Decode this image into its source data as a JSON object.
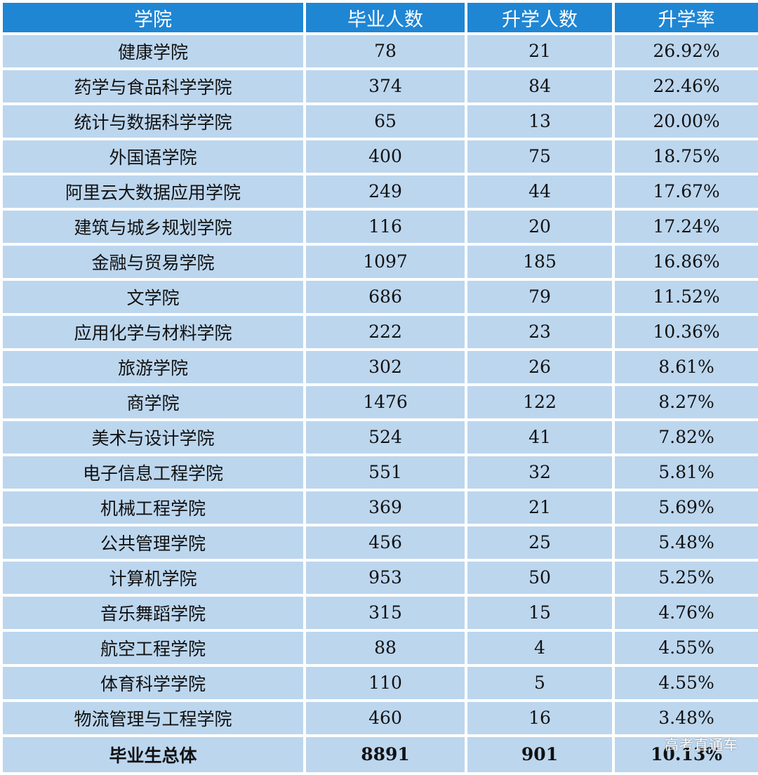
{
  "colors": {
    "header_bg": "#1f86d4",
    "header_text": "#ffffff",
    "cell_bg": "#bcd6ee",
    "grid": "#ffffff"
  },
  "table": {
    "headers": [
      "学院",
      "毕业人数",
      "升学人数",
      "升学率"
    ],
    "rows": [
      [
        "健康学院",
        "78",
        "21",
        "26.92%"
      ],
      [
        "药学与食品科学学院",
        "374",
        "84",
        "22.46%"
      ],
      [
        "统计与数据科学学院",
        "65",
        "13",
        "20.00%"
      ],
      [
        "外国语学院",
        "400",
        "75",
        "18.75%"
      ],
      [
        "阿里云大数据应用学院",
        "249",
        "44",
        "17.67%"
      ],
      [
        "建筑与城乡规划学院",
        "116",
        "20",
        "17.24%"
      ],
      [
        "金融与贸易学院",
        "1097",
        "185",
        "16.86%"
      ],
      [
        "文学院",
        "686",
        "79",
        "11.52%"
      ],
      [
        "应用化学与材料学院",
        "222",
        "23",
        "10.36%"
      ],
      [
        "旅游学院",
        "302",
        "26",
        "8.61%"
      ],
      [
        "商学院",
        "1476",
        "122",
        "8.27%"
      ],
      [
        "美术与设计学院",
        "524",
        "41",
        "7.82%"
      ],
      [
        "电子信息工程学院",
        "551",
        "32",
        "5.81%"
      ],
      [
        "机械工程学院",
        "369",
        "21",
        "5.69%"
      ],
      [
        "公共管理学院",
        "456",
        "25",
        "5.48%"
      ],
      [
        "计算机学院",
        "953",
        "50",
        "5.25%"
      ],
      [
        "音乐舞蹈学院",
        "315",
        "15",
        "4.76%"
      ],
      [
        "航空工程学院",
        "88",
        "4",
        "4.55%"
      ],
      [
        "体育科学学院",
        "110",
        "5",
        "4.55%"
      ],
      [
        "物流管理与工程学院",
        "460",
        "16",
        "3.48%"
      ]
    ],
    "total": [
      "毕业生总体",
      "8891",
      "901",
      "10.13%"
    ]
  },
  "watermark": "高考直通车"
}
